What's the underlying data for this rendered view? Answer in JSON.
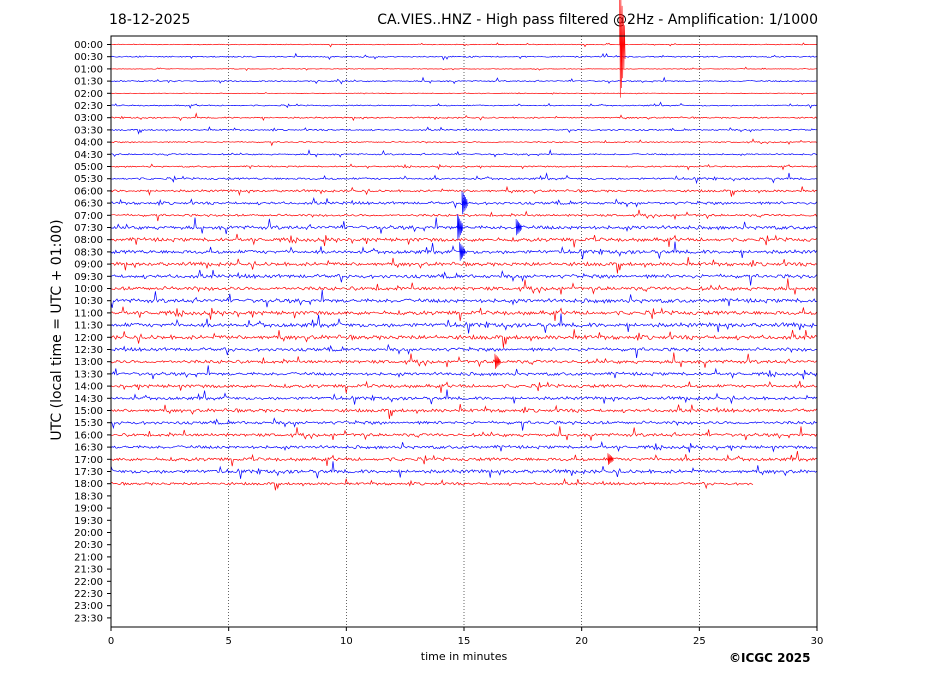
{
  "header": {
    "date": "18-12-2025",
    "title": "CA.VIES..HNZ - High pass filtered @2Hz - Amplification: 1/1000"
  },
  "footer": {
    "copyright": "©ICGC 2025"
  },
  "chart_data": {
    "type": "line",
    "title": "CA.VIES..HNZ - High pass filtered @2Hz - Amplification: 1/1000",
    "xlabel": "time in minutes",
    "ylabel": "UTC (local time = UTC + 01:00)",
    "xlim": [
      0,
      30
    ],
    "x_ticks": [
      0,
      5,
      10,
      15,
      20,
      25,
      30
    ],
    "grid": "vertical dotted at x ticks",
    "colors": {
      "even_trace": "#ff0000",
      "odd_trace": "#0000ff",
      "axis": "#000000"
    },
    "rows": [
      "00:00",
      "00:30",
      "01:00",
      "01:30",
      "02:00",
      "02:30",
      "03:00",
      "03:30",
      "04:00",
      "04:30",
      "05:00",
      "05:30",
      "06:00",
      "06:30",
      "07:00",
      "07:30",
      "08:00",
      "08:30",
      "09:00",
      "09:30",
      "10:00",
      "10:30",
      "11:00",
      "11:30",
      "12:00",
      "12:30",
      "13:00",
      "13:30",
      "14:00",
      "14:30",
      "15:00",
      "15:30",
      "16:00",
      "16:30",
      "17:00",
      "17:30",
      "18:00",
      "18:30",
      "19:00",
      "19:30",
      "20:00",
      "20:30",
      "21:00",
      "21:30",
      "22:00",
      "22:30",
      "23:00",
      "23:30"
    ],
    "trace_amplitude": [
      0.08,
      0.12,
      0.06,
      0.12,
      0.05,
      0.12,
      0.14,
      0.14,
      0.12,
      0.14,
      0.14,
      0.2,
      0.22,
      0.26,
      0.22,
      0.35,
      0.35,
      0.35,
      0.35,
      0.35,
      0.35,
      0.38,
      0.38,
      0.4,
      0.4,
      0.32,
      0.32,
      0.3,
      0.32,
      0.3,
      0.32,
      0.3,
      0.3,
      0.3,
      0.32,
      0.35,
      0.25
    ],
    "trace_end_minutes": [
      30,
      30,
      30,
      30,
      30,
      30,
      30,
      30,
      30,
      30,
      30,
      30,
      30,
      30,
      30,
      30,
      30,
      30,
      30,
      30,
      30,
      30,
      30,
      30,
      30,
      30,
      30,
      30,
      30,
      30,
      30,
      30,
      30,
      30,
      30,
      30,
      27.3
    ],
    "events": [
      {
        "row": 0,
        "minute": 21.7,
        "amplitude": 9.5
      },
      {
        "row": 13,
        "minute": 15.0,
        "amplitude": 2.0
      },
      {
        "row": 15,
        "minute": 14.8,
        "amplitude": 2.2
      },
      {
        "row": 15,
        "minute": 17.3,
        "amplitude": 1.4
      },
      {
        "row": 17,
        "minute": 14.9,
        "amplitude": 1.6
      },
      {
        "row": 26,
        "minute": 16.4,
        "amplitude": 1.3
      },
      {
        "row": 34,
        "minute": 21.2,
        "amplitude": 1.0
      }
    ]
  }
}
